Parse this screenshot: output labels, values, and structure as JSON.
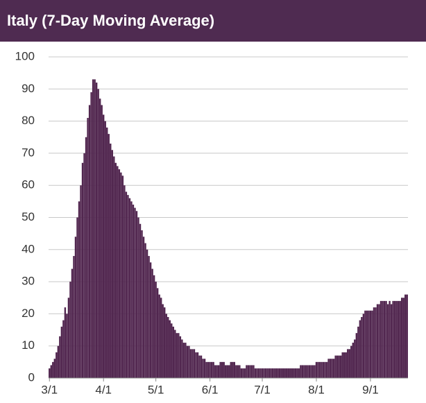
{
  "chart_data": {
    "type": "bar",
    "title": "Italy (7-Day Moving Average)",
    "categories": [
      "3/1",
      null,
      null,
      null,
      null,
      null,
      null,
      null,
      null,
      null,
      null,
      null,
      null,
      null,
      null,
      null,
      null,
      null,
      null,
      null,
      null,
      null,
      null,
      null,
      null,
      null,
      null,
      null,
      null,
      null,
      null,
      "4/1",
      null,
      null,
      null,
      null,
      null,
      null,
      null,
      null,
      null,
      null,
      null,
      null,
      null,
      null,
      null,
      null,
      null,
      null,
      null,
      null,
      null,
      null,
      null,
      null,
      null,
      null,
      null,
      null,
      null,
      "5/1",
      null,
      null,
      null,
      null,
      null,
      null,
      null,
      null,
      null,
      null,
      null,
      null,
      null,
      null,
      null,
      null,
      null,
      null,
      null,
      null,
      null,
      null,
      null,
      null,
      null,
      null,
      null,
      null,
      null,
      null,
      "6/1",
      null,
      null,
      null,
      null,
      null,
      null,
      null,
      null,
      null,
      null,
      null,
      null,
      null,
      null,
      null,
      null,
      null,
      null,
      null,
      null,
      null,
      null,
      null,
      null,
      null,
      null,
      null,
      null,
      null,
      "7/1",
      null,
      null,
      null,
      null,
      null,
      null,
      null,
      null,
      null,
      null,
      null,
      null,
      null,
      null,
      null,
      null,
      null,
      null,
      null,
      null,
      null,
      null,
      null,
      null,
      null,
      null,
      null,
      null,
      null,
      null,
      "8/1",
      null,
      null,
      null,
      null,
      null,
      null,
      null,
      null,
      null,
      null,
      null,
      null,
      null,
      null,
      null,
      null,
      null,
      null,
      null,
      null,
      null,
      null,
      null,
      null,
      null,
      null,
      null,
      null,
      null,
      null,
      "9/1",
      null,
      null,
      null,
      null,
      null,
      null,
      null,
      null,
      null,
      null,
      null,
      null,
      null,
      null,
      null,
      null,
      null,
      null,
      null,
      null,
      null
    ],
    "values": [
      3,
      4,
      5,
      6,
      8,
      10,
      13,
      16,
      18,
      22,
      20,
      25,
      30,
      34,
      38,
      44,
      50,
      55,
      60,
      67,
      70,
      75,
      81,
      85,
      89,
      93,
      93,
      92,
      90,
      87,
      85,
      82,
      80,
      78,
      76,
      73,
      71,
      69,
      67,
      66,
      65,
      64,
      63,
      60,
      58,
      57,
      56,
      55,
      54,
      53,
      52,
      50,
      48,
      46,
      44,
      42,
      40,
      38,
      36,
      34,
      32,
      30,
      28,
      26,
      25,
      23,
      22,
      20,
      19,
      18,
      17,
      16,
      15,
      14,
      14,
      13,
      12,
      11,
      11,
      10,
      10,
      9,
      9,
      9,
      8,
      8,
      7,
      7,
      6,
      6,
      5,
      5,
      5,
      5,
      5,
      4,
      4,
      4,
      5,
      5,
      5,
      4,
      4,
      4,
      5,
      5,
      5,
      4,
      4,
      4,
      3,
      3,
      3,
      4,
      4,
      4,
      4,
      4,
      3,
      3,
      3,
      3,
      3,
      3,
      3,
      3,
      3,
      3,
      3,
      3,
      3,
      3,
      3,
      3,
      3,
      3,
      3,
      3,
      3,
      3,
      3,
      3,
      3,
      3,
      4,
      4,
      4,
      4,
      4,
      4,
      4,
      4,
      4,
      5,
      5,
      5,
      5,
      5,
      5,
      5,
      6,
      6,
      6,
      6,
      7,
      7,
      7,
      7,
      8,
      8,
      8,
      9,
      9,
      10,
      11,
      12,
      14,
      16,
      18,
      19,
      20,
      21,
      21,
      21,
      21,
      21,
      22,
      22,
      23,
      23,
      24,
      24,
      24,
      24,
      23,
      24,
      23,
      24,
      24,
      24,
      24,
      24,
      25,
      25,
      26,
      26
    ],
    "color": "#51264f",
    "ylim": [
      0,
      100
    ],
    "yticks": [
      0,
      10,
      20,
      30,
      40,
      50,
      60,
      70,
      80,
      90,
      100
    ],
    "grid": true
  }
}
